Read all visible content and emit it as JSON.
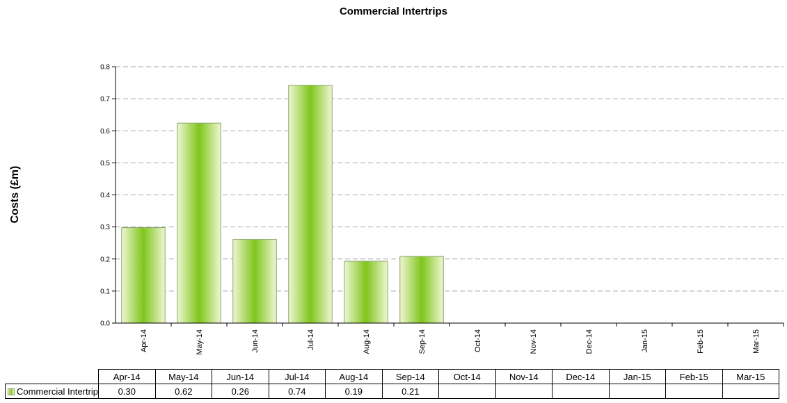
{
  "chart_data": {
    "type": "bar",
    "title": "Commercial Intertrips",
    "ylabel": "Costs (£m)",
    "xlabel": "",
    "ylim": [
      0,
      0.8
    ],
    "yticks": [
      "0.0",
      "0.1",
      "0.2",
      "0.3",
      "0.4",
      "0.5",
      "0.6",
      "0.7",
      "0.8"
    ],
    "grid": true,
    "categories": [
      "Apr-14",
      "May-14",
      "Jun-14",
      "Jul-14",
      "Aug-14",
      "Sep-14",
      "Oct-14",
      "Nov-14",
      "Dec-14",
      "Jan-15",
      "Feb-15",
      "Mar-15"
    ],
    "series": [
      {
        "name": "Commercial Intertrip",
        "values": [
          0.298,
          0.624,
          0.261,
          0.742,
          0.193,
          0.208,
          null,
          null,
          null,
          null,
          null,
          null
        ],
        "table_labels": [
          "0.30",
          "0.62",
          "0.26",
          "0.74",
          "0.19",
          "0.21",
          "",
          "",
          "",
          "",
          "",
          ""
        ]
      }
    ],
    "colors": {
      "bar_center": "#7fc51b",
      "bar_edge": "#eef7d2",
      "bar_border": "#8aa36b",
      "grid": "#a6a6a6"
    }
  }
}
